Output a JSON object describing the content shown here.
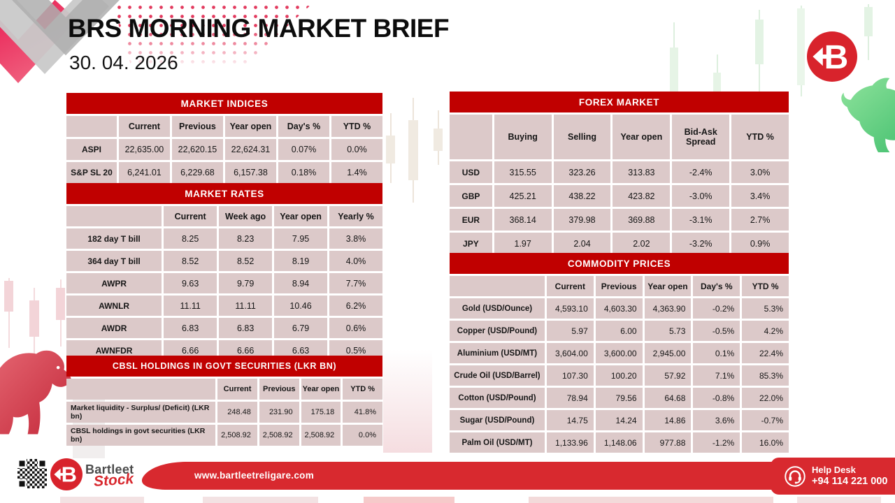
{
  "header": {
    "title": "BRS MORNING MARKET BRIEF",
    "date": "30. 04. 2026"
  },
  "tables": {
    "market_indices": {
      "title": "MARKET INDICES",
      "headers": [
        "",
        "Current",
        "Previous",
        "Year open",
        "Day's %",
        "YTD %"
      ],
      "rows": [
        [
          "ASPI",
          "22,635.00",
          "22,620.15",
          "22,624.31",
          "0.07%",
          "0.0%"
        ],
        [
          "S&P SL 20",
          "6,241.01",
          "6,229.68",
          "6,157.38",
          "0.18%",
          "1.4%"
        ]
      ]
    },
    "market_rates": {
      "title": "MARKET RATES",
      "headers": [
        "",
        "Current",
        "Week ago",
        "Year open",
        "Yearly %"
      ],
      "rows": [
        [
          "182 day T bill",
          "8.25",
          "8.23",
          "7.95",
          "3.8%"
        ],
        [
          "364 day T bill",
          "8.52",
          "8.52",
          "8.19",
          "4.0%"
        ],
        [
          "AWPR",
          "9.63",
          "9.79",
          "8.94",
          "7.7%"
        ],
        [
          "AWNLR",
          "11.11",
          "11.11",
          "10.46",
          "6.2%"
        ],
        [
          "AWDR",
          "6.83",
          "6.83",
          "6.79",
          "0.6%"
        ],
        [
          "AWNFDR",
          "6.66",
          "6.66",
          "6.63",
          "0.5%"
        ]
      ]
    },
    "cbsl_holdings": {
      "title": "CBSL HOLDINGS IN GOVT SECURITIES (LKR BN)",
      "headers": [
        "",
        "Current",
        "Previous",
        "Year open",
        "YTD %"
      ],
      "rows": [
        [
          "Market liquidity - Surplus/ (Deficit) (LKR bn)",
          "248.48",
          "231.90",
          "175.18",
          "41.8%"
        ],
        [
          "CBSL holdings in govt securities (LKR bn)",
          "2,508.92",
          "2,508.92",
          "2,508.92",
          "0.0%"
        ]
      ]
    },
    "forex_market": {
      "title": "FOREX MARKET",
      "headers": [
        "",
        "Buying",
        "Selling",
        "Year open",
        "Bid-Ask Spread",
        "YTD %"
      ],
      "rows": [
        [
          "USD",
          "315.55",
          "323.26",
          "313.83",
          "-2.4%",
          "3.0%"
        ],
        [
          "GBP",
          "425.21",
          "438.22",
          "423.82",
          "-3.0%",
          "3.4%"
        ],
        [
          "EUR",
          "368.14",
          "379.98",
          "369.88",
          "-3.1%",
          "2.7%"
        ],
        [
          "JPY",
          "1.97",
          "2.04",
          "2.02",
          "-3.2%",
          "0.9%"
        ]
      ]
    },
    "commodity_prices": {
      "title": "COMMODITY PRICES",
      "headers": [
        "",
        "Current",
        "Previous",
        "Year open",
        "Day's %",
        "YTD %"
      ],
      "rows": [
        [
          "Gold (USD/Ounce)",
          "4,593.10",
          "4,603.30",
          "4,363.90",
          "-0.2%",
          "5.3%"
        ],
        [
          "Copper (USD/Pound)",
          "5.97",
          "6.00",
          "5.73",
          "-0.5%",
          "4.2%"
        ],
        [
          "Aluminium (USD/MT)",
          "3,604.00",
          "3,600.00",
          "2,945.00",
          "0.1%",
          "22.4%"
        ],
        [
          "Crude Oil (USD/Barrel)",
          "107.30",
          "100.20",
          "57.92",
          "7.1%",
          "85.3%"
        ],
        [
          "Cotton (USD/Pound)",
          "78.94",
          "79.56",
          "64.68",
          "-0.8%",
          "22.0%"
        ],
        [
          "Sugar (USD/Pound)",
          "14.75",
          "14.24",
          "14.86",
          "3.6%",
          "-0.7%"
        ],
        [
          "Palm Oil (USD/MT)",
          "1,133.96",
          "1,148.06",
          "977.88",
          "-1.2%",
          "16.0%"
        ]
      ]
    }
  },
  "footer": {
    "brand_name_top": "Bartleet",
    "brand_name_bottom": "Stock",
    "website": "www.bartleetreligare.com",
    "help_desk_label": "Help Desk",
    "help_desk_phone": "+94 114 221 000"
  },
  "icons": {
    "brand": "b-left-arrow-logo",
    "help_desk": "headset-icon",
    "qr": "qr-code"
  },
  "colors": {
    "table_header_red": "#C00000",
    "cell_pink": "#DCC9C9",
    "footer_red": "#D8292F",
    "bull_green": "#57C878",
    "bear_red": "#D44B58"
  }
}
